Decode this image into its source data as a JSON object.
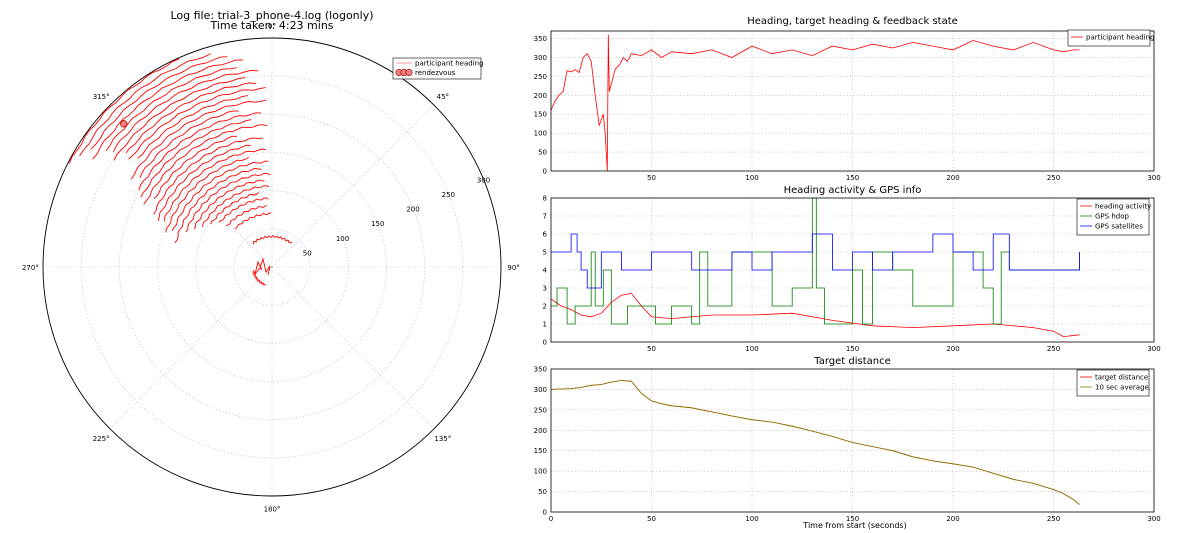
{
  "polar": {
    "title_line1": "Log file: trial-3_phone-4.log (logonly)",
    "title_line2": "Time taken: 4:23 mins",
    "angle_labels": [
      "0°",
      "45°",
      "90°",
      "135°",
      "180°",
      "225°",
      "270°",
      "315°"
    ],
    "radial_labels": [
      "50",
      "100",
      "150",
      "200",
      "250",
      "300"
    ],
    "legend": {
      "heading": "participant heading",
      "rendezvous": "rendezvous"
    },
    "colors": {
      "heading": "#ff0000",
      "rendezvous": "#f08080"
    }
  },
  "xlabel": "Time from start (seconds)",
  "chart_data": [
    {
      "type": "scatter",
      "title": "Log file: trial-3_phone-4.log (logonly) / Time taken: 4:23 mins",
      "projection": "polar",
      "theta_direction": "clockwise",
      "theta_zero": "top",
      "rlim": [
        0,
        300
      ],
      "grid": true,
      "legend_position": "top-right",
      "series": [
        {
          "name": "participant heading",
          "note": "arcs spanning ~300°-360° with growing radius",
          "arcs": [
            {
              "r": 298,
              "a0": 297,
              "a1": 336
            },
            {
              "r": 290,
              "a0": 300,
              "a1": 344
            },
            {
              "r": 282,
              "a0": 303,
              "a1": 348
            },
            {
              "r": 274,
              "a0": 301,
              "a1": 352
            },
            {
              "r": 266,
              "a0": 305,
              "a1": 350
            },
            {
              "r": 258,
              "a0": 306,
              "a1": 356
            },
            {
              "r": 250,
              "a0": 304,
              "a1": 352
            },
            {
              "r": 242,
              "a0": 308,
              "a1": 355
            },
            {
              "r": 234,
              "a0": 307,
              "a1": 358
            },
            {
              "r": 226,
              "a0": 309,
              "a1": 352
            },
            {
              "r": 218,
              "a0": 302,
              "a1": 358
            },
            {
              "r": 210,
              "a0": 304,
              "a1": 348
            },
            {
              "r": 202,
              "a0": 300,
              "a1": 356
            },
            {
              "r": 194,
              "a0": 298,
              "a1": 352
            },
            {
              "r": 186,
              "a0": 296,
              "a1": 358
            },
            {
              "r": 178,
              "a0": 300,
              "a1": 345
            },
            {
              "r": 170,
              "a0": 294,
              "a1": 356
            },
            {
              "r": 162,
              "a0": 292,
              "a1": 350
            },
            {
              "r": 154,
              "a0": 293,
              "a1": 357
            },
            {
              "r": 146,
              "a0": 288,
              "a1": 348
            },
            {
              "r": 138,
              "a0": 290,
              "a1": 358
            },
            {
              "r": 130,
              "a0": 284,
              "a1": 354
            },
            {
              "r": 122,
              "a0": 292,
              "a1": 359
            },
            {
              "r": 114,
              "a0": 296,
              "a1": 355
            },
            {
              "r": 106,
              "a0": 300,
              "a1": 358
            },
            {
              "r": 98,
              "a0": 305,
              "a1": 350
            },
            {
              "r": 90,
              "a0": 310,
              "a1": 357
            },
            {
              "r": 80,
              "a0": 312,
              "a1": 355
            },
            {
              "r": 70,
              "a0": 316,
              "a1": 359
            },
            {
              "r": 40,
              "a0": 320,
              "a1": 40
            },
            {
              "r": 25,
              "a0": 200,
              "a1": 260
            }
          ]
        },
        {
          "name": "rendezvous",
          "points": [
            {
              "theta": 314,
              "r": 270
            }
          ]
        }
      ]
    },
    {
      "type": "line",
      "title": "Heading, target heading & feedback state",
      "xlim": [
        0,
        300
      ],
      "ylim": [
        0,
        370
      ],
      "yticks": [
        0,
        50,
        100,
        150,
        200,
        250,
        300,
        350
      ],
      "xticks": [
        50,
        100,
        150,
        200,
        250,
        300
      ],
      "grid": true,
      "legend_position": "top-right",
      "series": [
        {
          "name": "participant heading",
          "color": "#ff0000",
          "x": [
            0,
            2,
            4,
            6,
            8,
            10,
            12,
            14,
            16,
            18,
            20,
            22,
            24,
            26,
            27,
            28,
            28.5,
            29,
            30,
            32,
            34,
            36,
            38,
            40,
            45,
            50,
            55,
            60,
            70,
            80,
            90,
            100,
            110,
            120,
            130,
            140,
            150,
            160,
            170,
            180,
            190,
            200,
            210,
            220,
            230,
            240,
            250,
            255,
            260,
            263
          ],
          "values": [
            160,
            185,
            200,
            210,
            265,
            262,
            268,
            260,
            300,
            310,
            290,
            200,
            120,
            150,
            95,
            0,
            360,
            210,
            230,
            270,
            280,
            300,
            290,
            310,
            305,
            320,
            300,
            315,
            310,
            320,
            300,
            330,
            310,
            320,
            305,
            330,
            320,
            335,
            325,
            340,
            330,
            320,
            345,
            330,
            320,
            340,
            320,
            315,
            320,
            320
          ]
        }
      ]
    },
    {
      "type": "line",
      "title": "Heading activity & GPS info",
      "xlim": [
        0,
        300
      ],
      "ylim": [
        0,
        8
      ],
      "yticks": [
        0,
        1,
        2,
        3,
        4,
        5,
        6,
        7,
        8
      ],
      "xticks": [
        50,
        100,
        150,
        200,
        250,
        300
      ],
      "grid": true,
      "legend_position": "top-right",
      "series": [
        {
          "name": "heading activity",
          "color": "#ff0000",
          "x": [
            0,
            5,
            10,
            15,
            20,
            25,
            30,
            35,
            40,
            45,
            50,
            60,
            80,
            100,
            120,
            140,
            160,
            180,
            200,
            220,
            240,
            250,
            255,
            263
          ],
          "values": [
            2.4,
            2.0,
            1.8,
            1.5,
            1.4,
            1.6,
            2.2,
            2.6,
            2.7,
            2.0,
            1.4,
            1.3,
            1.5,
            1.5,
            1.6,
            1.2,
            0.9,
            0.8,
            0.9,
            1.0,
            0.8,
            0.6,
            0.3,
            0.4
          ]
        },
        {
          "name": "GPS hdop",
          "color": "#008000",
          "x": [
            0,
            3,
            8,
            12,
            18,
            20,
            22,
            26,
            30,
            38,
            45,
            52,
            60,
            70,
            74,
            78,
            90,
            110,
            120,
            130,
            132,
            136,
            150,
            155,
            160,
            170,
            180,
            200,
            215,
            220,
            224,
            228,
            263
          ],
          "values": [
            2,
            3,
            1,
            2,
            2,
            5,
            2,
            4,
            1,
            2,
            2,
            1,
            2,
            1,
            5,
            2,
            5,
            2,
            3,
            8,
            3,
            1,
            4,
            1,
            5,
            4,
            2,
            5,
            3,
            1,
            5,
            4,
            5
          ]
        },
        {
          "name": "GPS satellites",
          "color": "#0000ff",
          "x": [
            0,
            5,
            10,
            13,
            15,
            18,
            25,
            35,
            50,
            70,
            90,
            100,
            110,
            130,
            140,
            150,
            160,
            170,
            190,
            200,
            210,
            220,
            228,
            263
          ],
          "values": [
            5,
            5,
            6,
            5,
            4,
            3,
            5,
            4,
            5,
            4,
            5,
            4,
            5,
            6,
            4,
            5,
            4,
            5,
            6,
            5,
            4,
            6,
            4,
            5
          ]
        }
      ]
    },
    {
      "type": "line",
      "title": "Target distance",
      "xlabel": "Time from start (seconds)",
      "xlim": [
        0,
        300
      ],
      "ylim": [
        0,
        350
      ],
      "yticks": [
        0,
        50,
        100,
        150,
        200,
        250,
        300,
        350
      ],
      "xticks": [
        0,
        50,
        100,
        150,
        200,
        250,
        300
      ],
      "grid": true,
      "legend_position": "top-right",
      "series": [
        {
          "name": "target distance",
          "color": "#ff0000",
          "x": [
            0,
            5,
            10,
            15,
            20,
            25,
            30,
            35,
            40,
            45,
            50,
            55,
            60,
            70,
            80,
            90,
            100,
            110,
            120,
            130,
            140,
            150,
            160,
            170,
            180,
            190,
            200,
            210,
            220,
            230,
            240,
            250,
            255,
            260,
            263
          ],
          "values": [
            300,
            301,
            302,
            305,
            310,
            312,
            318,
            322,
            320,
            290,
            272,
            265,
            260,
            255,
            245,
            235,
            226,
            220,
            210,
            198,
            185,
            170,
            160,
            150,
            135,
            125,
            118,
            110,
            95,
            80,
            70,
            55,
            45,
            30,
            18
          ]
        },
        {
          "name": "10 sec average",
          "color": "#808000",
          "x": [
            0,
            5,
            10,
            15,
            20,
            25,
            30,
            35,
            40,
            45,
            50,
            55,
            60,
            70,
            80,
            90,
            100,
            110,
            120,
            130,
            140,
            150,
            160,
            170,
            180,
            190,
            200,
            210,
            220,
            230,
            240,
            250,
            255,
            260,
            263
          ],
          "values": [
            300,
            301,
            302,
            305,
            310,
            312,
            318,
            322,
            320,
            290,
            272,
            265,
            260,
            255,
            245,
            235,
            226,
            220,
            210,
            198,
            185,
            170,
            160,
            150,
            135,
            125,
            118,
            110,
            95,
            80,
            70,
            55,
            45,
            30,
            18
          ]
        }
      ]
    }
  ]
}
